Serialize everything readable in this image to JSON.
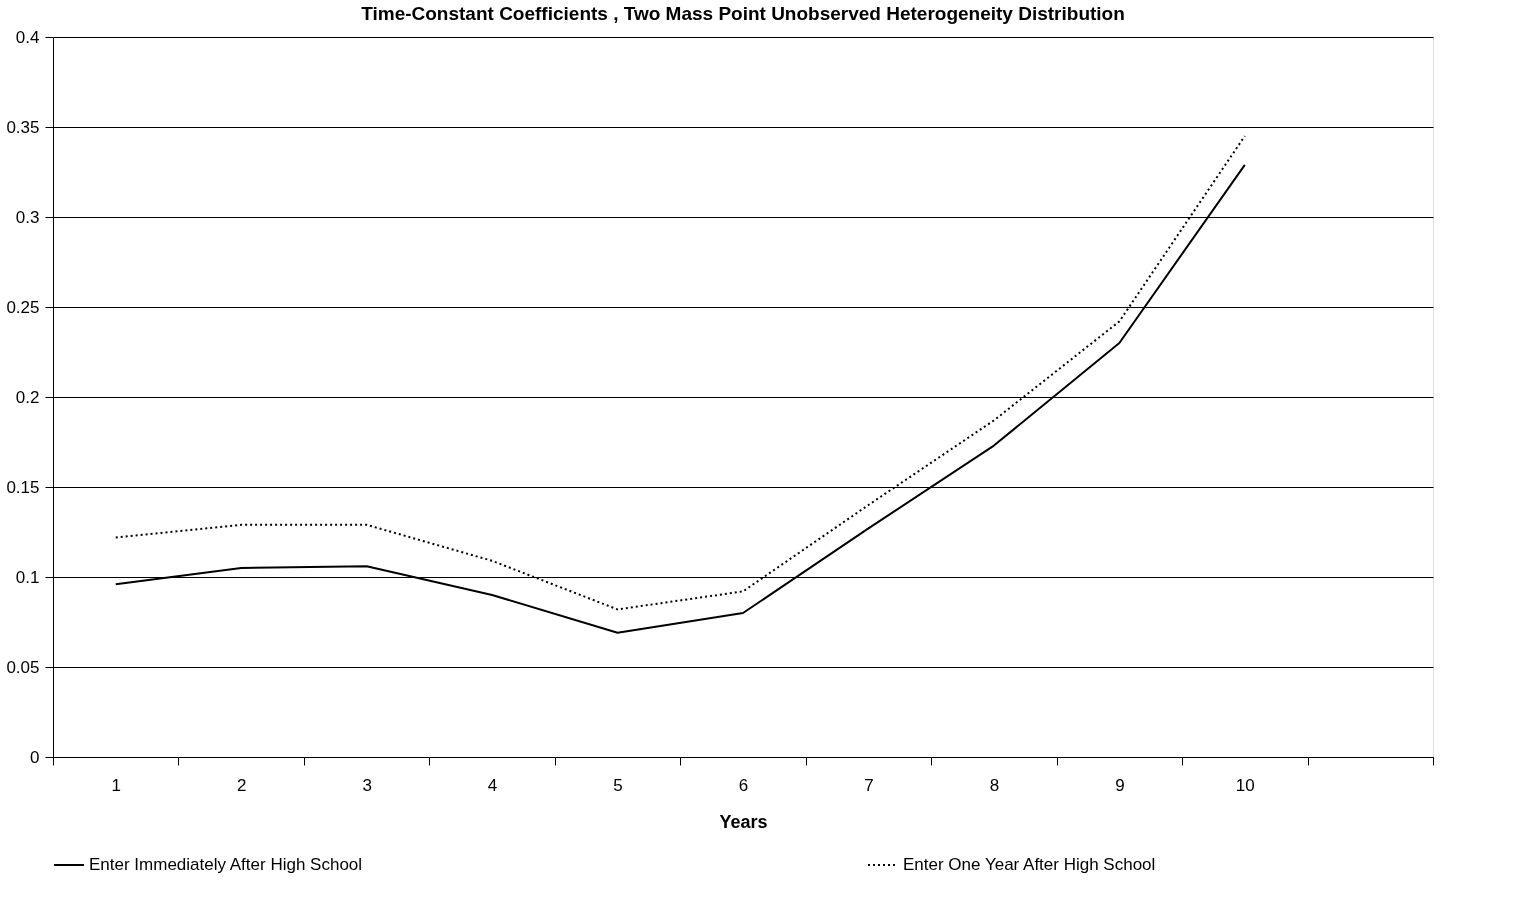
{
  "chart_data": {
    "type": "line",
    "title": "Time-Constant Coefficients , Two Mass Point Unobserved Heterogeneity Distribution",
    "xlabel": "Years",
    "categories": [
      "1",
      "2",
      "3",
      "4",
      "5",
      "6",
      "7",
      "8",
      "9",
      "10",
      null
    ],
    "series": [
      {
        "name": "Enter Immediately After High School",
        "color": "#000000",
        "line_style": "solid",
        "values": [
          0.096,
          0.105,
          0.106,
          0.09,
          0.069,
          0.08,
          0.127,
          0.173,
          0.23,
          0.329,
          null
        ]
      },
      {
        "name": "Enter One Year After High School",
        "color": "#000000",
        "line_style": "dotted",
        "values": [
          0.122,
          0.129,
          0.129,
          0.109,
          0.082,
          0.092,
          0.14,
          0.187,
          0.242,
          0.345,
          null
        ]
      }
    ],
    "ylim": [
      0,
      0.4
    ],
    "yticks": [
      0,
      0.05,
      0.1,
      0.15,
      0.2,
      0.25,
      0.3,
      0.35,
      0.4
    ],
    "grid": "y",
    "legend": "bottom",
    "marker": "none"
  }
}
